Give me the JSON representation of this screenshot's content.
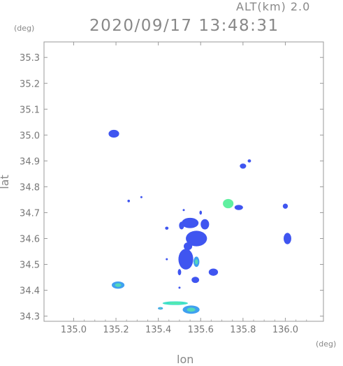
{
  "header": {
    "altitude_label": "ALT(km) 2.0",
    "timestamp": "2020/09/17 13:48:31"
  },
  "axes": {
    "lat_unit": "(deg)",
    "lon_unit": "(deg)",
    "lat_title": "lat",
    "lon_title": "lon",
    "lon_range": [
      134.86,
      136.18
    ],
    "lat_range": [
      34.28,
      35.36
    ],
    "lon_ticks": [
      "135.0",
      "135.2",
      "135.4",
      "135.6",
      "135.8",
      "136.0"
    ],
    "lat_ticks": [
      "34.3",
      "34.4",
      "34.5",
      "34.6",
      "34.7",
      "34.8",
      "34.9",
      "35.0",
      "35.1",
      "35.2",
      "35.3"
    ]
  },
  "colors": {
    "frame": "#999999",
    "weak": "#3f55f0",
    "moderate": "#3fa0f0",
    "strong": "#40e0c8",
    "core": "#60f0a0"
  },
  "echoes": [
    {
      "lon": 135.19,
      "lat": 35.005,
      "rx": 0.025,
      "ry": 0.015,
      "level": "weak"
    },
    {
      "lon": 135.21,
      "lat": 34.42,
      "rx": 0.03,
      "ry": 0.014,
      "level": "moderate"
    },
    {
      "lon": 135.41,
      "lat": 34.33,
      "rx": 0.012,
      "ry": 0.005,
      "level": "moderate"
    },
    {
      "lon": 135.48,
      "lat": 34.35,
      "rx": 0.06,
      "ry": 0.007,
      "level": "strong"
    },
    {
      "lon": 135.555,
      "lat": 34.325,
      "rx": 0.04,
      "ry": 0.016,
      "level": "moderate"
    },
    {
      "lon": 135.53,
      "lat": 34.52,
      "rx": 0.035,
      "ry": 0.04,
      "level": "weak"
    },
    {
      "lon": 135.58,
      "lat": 34.6,
      "rx": 0.05,
      "ry": 0.03,
      "level": "weak"
    },
    {
      "lon": 135.55,
      "lat": 34.66,
      "rx": 0.04,
      "ry": 0.02,
      "level": "weak"
    },
    {
      "lon": 135.62,
      "lat": 34.655,
      "rx": 0.02,
      "ry": 0.02,
      "level": "weak"
    },
    {
      "lon": 135.54,
      "lat": 34.57,
      "rx": 0.02,
      "ry": 0.015,
      "level": "weak"
    },
    {
      "lon": 135.66,
      "lat": 34.47,
      "rx": 0.022,
      "ry": 0.014,
      "level": "weak"
    },
    {
      "lon": 135.575,
      "lat": 34.44,
      "rx": 0.018,
      "ry": 0.012,
      "level": "weak"
    },
    {
      "lon": 135.73,
      "lat": 34.735,
      "rx": 0.025,
      "ry": 0.018,
      "level": "core"
    },
    {
      "lon": 135.78,
      "lat": 34.72,
      "rx": 0.02,
      "ry": 0.01,
      "level": "weak"
    },
    {
      "lon": 135.8,
      "lat": 34.88,
      "rx": 0.015,
      "ry": 0.01,
      "level": "weak"
    },
    {
      "lon": 135.83,
      "lat": 34.9,
      "rx": 0.008,
      "ry": 0.006,
      "level": "weak"
    },
    {
      "lon": 136.0,
      "lat": 34.725,
      "rx": 0.012,
      "ry": 0.01,
      "level": "weak"
    },
    {
      "lon": 136.01,
      "lat": 34.6,
      "rx": 0.018,
      "ry": 0.022,
      "level": "weak"
    },
    {
      "lon": 135.51,
      "lat": 34.65,
      "rx": 0.012,
      "ry": 0.015,
      "level": "weak"
    },
    {
      "lon": 135.44,
      "lat": 34.64,
      "rx": 0.008,
      "ry": 0.006,
      "level": "weak"
    },
    {
      "lon": 135.44,
      "lat": 34.52,
      "rx": 0.005,
      "ry": 0.004,
      "level": "weak"
    },
    {
      "lon": 135.5,
      "lat": 34.41,
      "rx": 0.005,
      "ry": 0.004,
      "level": "weak"
    },
    {
      "lon": 135.26,
      "lat": 34.745,
      "rx": 0.006,
      "ry": 0.005,
      "level": "weak"
    },
    {
      "lon": 135.32,
      "lat": 34.76,
      "rx": 0.004,
      "ry": 0.004,
      "level": "weak"
    },
    {
      "lon": 135.52,
      "lat": 34.71,
      "rx": 0.004,
      "ry": 0.004,
      "level": "weak"
    },
    {
      "lon": 135.6,
      "lat": 34.7,
      "rx": 0.006,
      "ry": 0.008,
      "level": "weak"
    },
    {
      "lon": 135.5,
      "lat": 34.47,
      "rx": 0.008,
      "ry": 0.012,
      "level": "weak"
    },
    {
      "lon": 135.58,
      "lat": 34.51,
      "rx": 0.014,
      "ry": 0.02,
      "level": "moderate"
    }
  ]
}
